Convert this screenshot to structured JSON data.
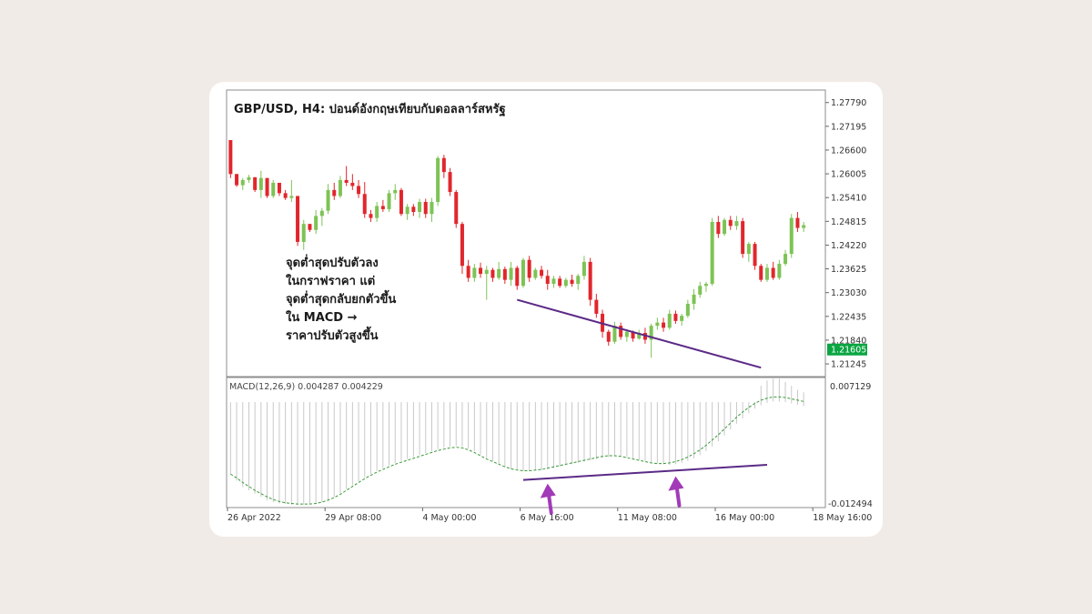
{
  "chart_data": {
    "type": "candlestick",
    "title": "GBP/USD, H4: ปอนด์อังกฤษเทียบกับดอลลาร์สหรัฐ",
    "price_axis": {
      "ticks": [
        "1.27790",
        "1.27195",
        "1.26600",
        "1.26005",
        "1.25410",
        "1.24815",
        "1.24220",
        "1.23625",
        "1.23030",
        "1.22435",
        "1.21840",
        "1.21245"
      ],
      "range": [
        1.2095,
        1.2808
      ]
    },
    "current_price": "1.21605",
    "x_axis": {
      "labels": [
        "26 Apr 2022",
        "29 Apr 08:00",
        "4 May 00:00",
        "6 May 16:00",
        "11 May 08:00",
        "16 May 00:00",
        "18 May 16:00"
      ],
      "label_index": [
        0,
        16,
        32,
        48,
        64,
        80,
        96
      ]
    },
    "candles": [
      [
        1.2685,
        1.2685,
        1.259,
        1.26
      ],
      [
        1.26,
        1.26,
        1.2568,
        1.2572
      ],
      [
        1.2572,
        1.259,
        1.256,
        1.2585
      ],
      [
        1.2585,
        1.2598,
        1.2578,
        1.2592
      ],
      [
        1.2592,
        1.2592,
        1.2555,
        1.256
      ],
      [
        1.256,
        1.2608,
        1.254,
        1.259
      ],
      [
        1.259,
        1.259,
        1.254,
        1.2545
      ],
      [
        1.2545,
        1.2585,
        1.254,
        1.2578
      ],
      [
        1.2578,
        1.2578,
        1.2545,
        1.2552
      ],
      [
        1.2552,
        1.256,
        1.2535,
        1.254
      ],
      [
        1.254,
        1.2585,
        1.253,
        1.2545
      ],
      [
        1.2545,
        1.2545,
        1.242,
        1.243
      ],
      [
        1.243,
        1.2485,
        1.241,
        1.2475
      ],
      [
        1.2475,
        1.2475,
        1.2455,
        1.246
      ],
      [
        1.246,
        1.251,
        1.245,
        1.2495
      ],
      [
        1.2495,
        1.2515,
        1.247,
        1.2508
      ],
      [
        1.2508,
        1.2575,
        1.25,
        1.256
      ],
      [
        1.256,
        1.2578,
        1.2535,
        1.2545
      ],
      [
        1.2545,
        1.2595,
        1.254,
        1.2585
      ],
      [
        1.2585,
        1.262,
        1.257,
        1.2578
      ],
      [
        1.2578,
        1.26,
        1.256,
        1.257
      ],
      [
        1.257,
        1.2585,
        1.254,
        1.255
      ],
      [
        1.255,
        1.258,
        1.249,
        1.25
      ],
      [
        1.25,
        1.251,
        1.248,
        1.249
      ],
      [
        1.249,
        1.253,
        1.248,
        1.252
      ],
      [
        1.252,
        1.2535,
        1.2505,
        1.2512
      ],
      [
        1.2512,
        1.256,
        1.2505,
        1.2552
      ],
      [
        1.2552,
        1.2575,
        1.2535,
        1.256
      ],
      [
        1.256,
        1.2565,
        1.2495,
        1.25
      ],
      [
        1.25,
        1.2525,
        1.2485,
        1.2518
      ],
      [
        1.2518,
        1.2525,
        1.2495,
        1.2505
      ],
      [
        1.2505,
        1.2538,
        1.249,
        1.253
      ],
      [
        1.253,
        1.2538,
        1.249,
        1.25
      ],
      [
        1.25,
        1.254,
        1.248,
        1.253
      ],
      [
        1.253,
        1.2645,
        1.252,
        1.264
      ],
      [
        1.264,
        1.2648,
        1.259,
        1.2605
      ],
      [
        1.2605,
        1.2615,
        1.2545,
        1.2555
      ],
      [
        1.2555,
        1.256,
        1.2465,
        1.2475
      ],
      [
        1.2475,
        1.248,
        1.235,
        1.237
      ],
      [
        1.237,
        1.2385,
        1.233,
        1.234
      ],
      [
        1.234,
        1.2375,
        1.233,
        1.2365
      ],
      [
        1.2365,
        1.2378,
        1.234,
        1.235
      ],
      [
        1.235,
        1.237,
        1.2285,
        1.236
      ],
      [
        1.236,
        1.2365,
        1.233,
        1.234
      ],
      [
        1.234,
        1.238,
        1.2335,
        1.2362
      ],
      [
        1.2362,
        1.2368,
        1.2325,
        1.2335
      ],
      [
        1.2335,
        1.238,
        1.232,
        1.2365
      ],
      [
        1.2365,
        1.237,
        1.231,
        1.232
      ],
      [
        1.232,
        1.239,
        1.2315,
        1.2385
      ],
      [
        1.2385,
        1.2395,
        1.233,
        1.234
      ],
      [
        1.234,
        1.2365,
        1.2335,
        1.236
      ],
      [
        1.236,
        1.237,
        1.2338,
        1.2345
      ],
      [
        1.2345,
        1.236,
        1.231,
        1.2325
      ],
      [
        1.2325,
        1.2345,
        1.2315,
        1.2338
      ],
      [
        1.2338,
        1.2345,
        1.2315,
        1.232
      ],
      [
        1.232,
        1.234,
        1.2315,
        1.2335
      ],
      [
        1.2335,
        1.2348,
        1.2318,
        1.2325
      ],
      [
        1.2325,
        1.235,
        1.231,
        1.2345
      ],
      [
        1.2345,
        1.2395,
        1.2335,
        1.238
      ],
      [
        1.238,
        1.239,
        1.227,
        1.2285
      ],
      [
        1.2285,
        1.23,
        1.224,
        1.225
      ],
      [
        1.225,
        1.226,
        1.219,
        1.2205
      ],
      [
        1.2205,
        1.221,
        1.217,
        1.218
      ],
      [
        1.218,
        1.223,
        1.2175,
        1.222
      ],
      [
        1.222,
        1.2228,
        1.2185,
        1.2192
      ],
      [
        1.2192,
        1.221,
        1.218,
        1.2205
      ],
      [
        1.2205,
        1.2208,
        1.218,
        1.2188
      ],
      [
        1.2188,
        1.221,
        1.2185,
        1.2202
      ],
      [
        1.2202,
        1.2215,
        1.2175,
        1.2185
      ],
      [
        1.2185,
        1.2225,
        1.214,
        1.222
      ],
      [
        1.222,
        1.224,
        1.221,
        1.2228
      ],
      [
        1.2228,
        1.224,
        1.2205,
        1.2215
      ],
      [
        1.2215,
        1.226,
        1.221,
        1.225
      ],
      [
        1.225,
        1.2258,
        1.2225,
        1.2232
      ],
      [
        1.2232,
        1.225,
        1.222,
        1.2245
      ],
      [
        1.2245,
        1.2285,
        1.224,
        1.2275
      ],
      [
        1.2275,
        1.2312,
        1.226,
        1.2298
      ],
      [
        1.2298,
        1.233,
        1.229,
        1.232
      ],
      [
        1.232,
        1.233,
        1.2305,
        1.2325
      ],
      [
        1.2325,
        1.249,
        1.232,
        1.248
      ],
      [
        1.248,
        1.2495,
        1.244,
        1.245
      ],
      [
        1.245,
        1.249,
        1.2445,
        1.2485
      ],
      [
        1.2485,
        1.2495,
        1.246,
        1.247
      ],
      [
        1.247,
        1.2495,
        1.246,
        1.2482
      ],
      [
        1.2482,
        1.249,
        1.239,
        1.24
      ],
      [
        1.24,
        1.243,
        1.238,
        1.2425
      ],
      [
        1.2425,
        1.243,
        1.236,
        1.237
      ],
      [
        1.237,
        1.2375,
        1.233,
        1.2335
      ],
      [
        1.2335,
        1.2375,
        1.233,
        1.2365
      ],
      [
        1.2365,
        1.238,
        1.2335,
        1.234
      ],
      [
        1.234,
        1.2385,
        1.2335,
        1.2375
      ],
      [
        1.2375,
        1.241,
        1.237,
        1.24
      ],
      [
        1.24,
        1.25,
        1.239,
        1.249
      ],
      [
        1.249,
        1.2505,
        1.2455,
        1.2465
      ],
      [
        1.2465,
        1.248,
        1.2455,
        1.2472
      ]
    ],
    "macd": {
      "label": "MACD(12,26,9) 0.004287 0.004229",
      "range": [
        -0.012494,
        0.007129
      ],
      "top_label": "0.007129",
      "bottom_label": "-0.012494",
      "histogram": [
        0.0035,
        0.0035,
        0.0035,
        0.0035,
        0.0035,
        0.0035,
        0.0035,
        0.0035,
        0.0035,
        0.0035,
        0.0035,
        0.0035,
        0.0035,
        0.0035,
        0.0035,
        0.0035,
        0.0035,
        0.0035,
        0.0035,
        0.0035,
        0.0035,
        0.0035,
        0.0035,
        0.0035,
        0.0035,
        0.0035,
        0.0035,
        0.0035,
        0.0035,
        0.0035,
        0.0035,
        0.0035,
        0.0035,
        0.0035,
        0.0035,
        0.0035,
        0.0035,
        0.0035,
        0.0035,
        0.0035,
        0.0035,
        0.0035,
        0.0035,
        0.0035,
        0.0035,
        0.0035,
        0.0035,
        0.0035,
        0.0035,
        0.0035,
        0.0035,
        0.0035,
        0.0035,
        0.0035,
        0.0035,
        0.0035,
        0.0035,
        0.0035,
        0.0035,
        0.0035,
        0.0035,
        0.0035,
        0.0035,
        0.0035,
        0.0035,
        0.0035,
        0.0035,
        0.0035,
        0.0035,
        0.0035,
        0.0035,
        0.0035,
        0.0035,
        0.0035,
        0.0035,
        0.0035,
        0.0035,
        0.0035,
        0.0035,
        0.0035,
        0.0035,
        0.0035,
        0.0035,
        0.0035,
        0.0035,
        0.0035,
        0.0035,
        0.0035,
        0.0035,
        0.0035,
        0.0035,
        0.0035,
        0.0035,
        0.0035,
        0.0035
      ],
      "histogram_low": [
        -0.0075,
        -0.0085,
        -0.0095,
        -0.01,
        -0.0105,
        -0.011,
        -0.0115,
        -0.0118,
        -0.012,
        -0.0121,
        -0.0122,
        -0.0122,
        -0.0122,
        -0.0121,
        -0.012,
        -0.0118,
        -0.0115,
        -0.011,
        -0.0104,
        -0.0098,
        -0.0092,
        -0.0086,
        -0.008,
        -0.0075,
        -0.007,
        -0.0066,
        -0.0062,
        -0.0058,
        -0.0055,
        -0.0052,
        -0.0049,
        -0.0046,
        -0.0043,
        -0.004,
        -0.0037,
        -0.0035,
        -0.0033,
        -0.0032,
        -0.0033,
        -0.0036,
        -0.004,
        -0.0045,
        -0.005,
        -0.0055,
        -0.006,
        -0.0064,
        -0.0067,
        -0.0069,
        -0.007,
        -0.007,
        -0.007,
        -0.0069,
        -0.0068,
        -0.0066,
        -0.0064,
        -0.0062,
        -0.006,
        -0.0058,
        -0.0056,
        -0.0054,
        -0.0052,
        -0.005,
        -0.0049,
        -0.0048,
        -0.0048,
        -0.0049,
        -0.0051,
        -0.0053,
        -0.0055,
        -0.0057,
        -0.0059,
        -0.006,
        -0.0061,
        -0.006,
        -0.0058,
        -0.0055,
        -0.0051,
        -0.0046,
        -0.004,
        -0.0033,
        -0.0025,
        -0.0016,
        -0.0007,
        0.0002,
        0.001,
        0.0018,
        0.0025,
        0.003,
        0.0034,
        0.0036,
        0.0036,
        0.0035,
        0.0033,
        0.0031,
        0.0029
      ],
      "histogram_high": [
        0.0035,
        0.0035,
        0.0035,
        0.0035,
        0.0035,
        0.0035,
        0.0035,
        0.0035,
        0.0035,
        0.0035,
        0.0035,
        0.0035,
        0.0035,
        0.0035,
        0.0035,
        0.0035,
        0.0035,
        0.0035,
        0.0035,
        0.0035,
        0.0035,
        0.0035,
        0.0035,
        0.0035,
        0.0035,
        0.0035,
        0.0035,
        0.0035,
        0.0035,
        0.0035,
        0.0035,
        0.0035,
        0.0035,
        0.0035,
        0.0035,
        0.0035,
        0.0035,
        0.0035,
        0.0035,
        0.0035,
        0.0035,
        0.0035,
        0.0035,
        0.0035,
        0.0035,
        0.0035,
        0.0035,
        0.0035,
        0.0035,
        0.0035,
        0.0035,
        0.0035,
        0.0035,
        0.0035,
        0.0035,
        0.0035,
        0.0035,
        0.0035,
        0.0035,
        0.0035,
        0.0035,
        0.0035,
        0.0035,
        0.0035,
        0.0035,
        0.0035,
        0.0035,
        0.0035,
        0.0035,
        0.0035,
        0.0035,
        0.0035,
        0.0035,
        0.0035,
        0.0035,
        0.0035,
        0.0035,
        0.0035,
        0.0035,
        0.0035,
        0.0035,
        0.0035,
        0.0035,
        0.0035,
        0.0035,
        0.0035,
        0.0035,
        0.006,
        0.0068,
        0.0071,
        0.0071,
        0.0066,
        0.006,
        0.0054,
        0.005
      ],
      "signal": [
        -0.0075,
        -0.0081,
        -0.0088,
        -0.0094,
        -0.01,
        -0.0105,
        -0.011,
        -0.0114,
        -0.0117,
        -0.0119,
        -0.012,
        -0.0121,
        -0.0121,
        -0.0121,
        -0.012,
        -0.0118,
        -0.0115,
        -0.0111,
        -0.0106,
        -0.01,
        -0.0094,
        -0.0088,
        -0.0082,
        -0.0077,
        -0.0072,
        -0.0068,
        -0.0064,
        -0.006,
        -0.0057,
        -0.0054,
        -0.0051,
        -0.0048,
        -0.0045,
        -0.0042,
        -0.0039,
        -0.0037,
        -0.0035,
        -0.0034,
        -0.0035,
        -0.0038,
        -0.0042,
        -0.0047,
        -0.0052,
        -0.0056,
        -0.006,
        -0.0064,
        -0.0067,
        -0.0069,
        -0.007,
        -0.007,
        -0.0069,
        -0.0068,
        -0.0066,
        -0.0064,
        -0.0062,
        -0.006,
        -0.0058,
        -0.0056,
        -0.0054,
        -0.0052,
        -0.005,
        -0.0048,
        -0.0047,
        -0.0047,
        -0.0048,
        -0.005,
        -0.0052,
        -0.0054,
        -0.0056,
        -0.0058,
        -0.0059,
        -0.0059,
        -0.0058,
        -0.0056,
        -0.0053,
        -0.0049,
        -0.0044,
        -0.0038,
        -0.0031,
        -0.0023,
        -0.0015,
        -0.0006,
        0.0003,
        0.0012,
        0.002,
        0.0027,
        0.0033,
        0.0038,
        0.0041,
        0.0043,
        0.0043,
        0.0042,
        0.004,
        0.0038,
        0.0036
      ]
    },
    "annotation": {
      "lines": [
        "จุดต่ำสุดปรับตัวลง",
        "ในกราฟราคา แต่",
        "จุดต่ำสุดกลับยกตัวขึ้น",
        "ใน MACD →",
        "ราคาปรับตัวสูงขึ้น"
      ]
    },
    "price_trendline": {
      "from": [
        47,
        1.2285
      ],
      "to": [
        87,
        1.2115
      ]
    },
    "macd_trendline": {
      "from": [
        48,
        -0.0084
      ],
      "to": [
        88,
        -0.0061
      ]
    },
    "arrow_targets": [
      [
        52,
        -0.0084
      ],
      [
        73,
        -0.0073
      ]
    ],
    "colors": {
      "bull": "#7dc355",
      "bear": "#e1262c",
      "trendline": "#5b2a86",
      "arrow": "#a23ab8",
      "badge": "#0aa642",
      "signal": "#3a9a3a",
      "histogram": "#c8c8c8"
    }
  }
}
